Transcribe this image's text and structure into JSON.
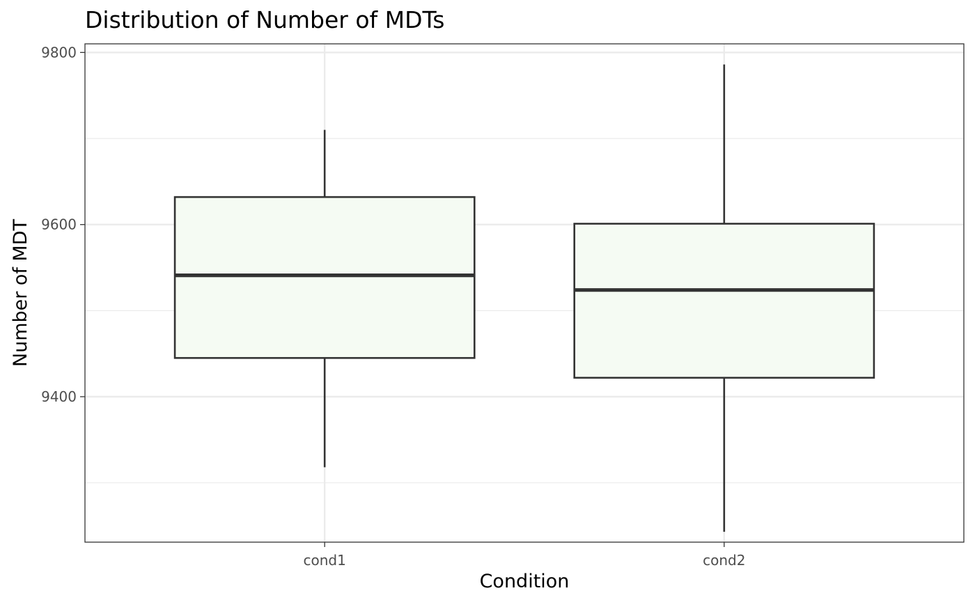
{
  "chart_data": {
    "type": "boxplot",
    "title": "Distribution of Number of MDTs",
    "xlabel": "Condition",
    "ylabel": "Number of MDT",
    "categories": [
      "cond1",
      "cond2"
    ],
    "boxes": [
      {
        "category": "cond1",
        "whisker_low": 9318,
        "q1": 9445,
        "median": 9541,
        "q3": 9632,
        "whisker_high": 9710
      },
      {
        "category": "cond2",
        "whisker_low": 9243,
        "q1": 9422,
        "median": 9524,
        "q3": 9601,
        "whisker_high": 9786
      }
    ],
    "ylim": [
      9231,
      9810
    ],
    "yticks": [
      9400,
      9600,
      9800
    ],
    "yticks_minor": [
      9300,
      9500,
      9700
    ],
    "grid": true,
    "colors": {
      "box_fill": "#f5fbf3",
      "box_stroke": "#333333",
      "grid": "#ebebeb",
      "panel_border": "#333333"
    }
  }
}
